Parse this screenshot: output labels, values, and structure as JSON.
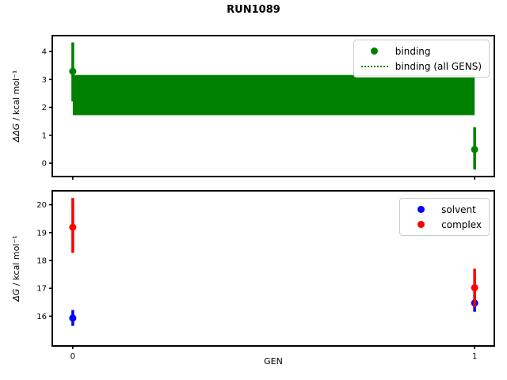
{
  "figure": {
    "title": "RUN1089",
    "background": "#ffffff",
    "colors": {
      "binding": "#008000",
      "solvent": "#0000ff",
      "complex": "#ff0000",
      "axes": "#000000",
      "legend_border": "#cccccc"
    }
  },
  "chart_data": [
    {
      "type": "scatter",
      "title": "RUN1089",
      "xlabel": "",
      "ylabel": "ΔΔG / kcal mol⁻¹",
      "ylabel_math": "ΔΔG",
      "ylabel_units": " / kcal mol⁻¹",
      "xlim": [
        -0.051,
        1.049
      ],
      "ylim": [
        -0.48,
        4.57
      ],
      "xticks": [
        0,
        1
      ],
      "show_xtick_labels": false,
      "yticks": [
        0,
        1,
        2,
        3,
        4
      ],
      "grid": false,
      "legend": {
        "position": "upper right",
        "items": [
          {
            "label": "binding",
            "handle": "dot",
            "color": "#008000"
          },
          {
            "label": "binding (all GENS)",
            "handle": "dotted-line",
            "color": "#008000"
          }
        ]
      },
      "series": [
        {
          "name": "binding (all GENS)",
          "type": "hband",
          "color": "#008000",
          "x_range": [
            0,
            1
          ],
          "center": 2.44,
          "lo": 1.72,
          "hi": 3.16,
          "center_linestyle": "dotted"
        },
        {
          "name": "binding",
          "type": "points",
          "color": "#008000",
          "x": [
            0,
            1
          ],
          "y": [
            3.29,
            0.49
          ],
          "err_lo": [
            2.21,
            -0.23
          ],
          "err_hi": [
            4.33,
            1.29
          ]
        }
      ]
    },
    {
      "type": "scatter",
      "title": "",
      "xlabel": "GEN",
      "ylabel": "ΔG / kcal mol⁻¹",
      "ylabel_math": "ΔG",
      "ylabel_units": " / kcal mol⁻¹",
      "xlim": [
        -0.051,
        1.049
      ],
      "ylim": [
        14.93,
        20.5
      ],
      "xticks": [
        0,
        1
      ],
      "show_xtick_labels": true,
      "yticks": [
        16,
        17,
        18,
        19,
        20
      ],
      "grid": false,
      "legend": {
        "position": "upper right",
        "items": [
          {
            "label": "solvent",
            "handle": "dot",
            "color": "#0000ff"
          },
          {
            "label": "complex",
            "handle": "dot",
            "color": "#ff0000"
          }
        ]
      },
      "series": [
        {
          "name": "solvent",
          "type": "points",
          "color": "#0000ff",
          "x": [
            0,
            1
          ],
          "y": [
            15.93,
            16.47
          ],
          "err_lo": [
            15.65,
            16.16
          ],
          "err_hi": [
            16.22,
            16.78
          ]
        },
        {
          "name": "complex",
          "type": "points",
          "color": "#ff0000",
          "x": [
            0,
            1
          ],
          "y": [
            19.19,
            17.02
          ],
          "err_lo": [
            18.27,
            16.34
          ],
          "err_hi": [
            20.24,
            17.7
          ]
        }
      ]
    }
  ]
}
